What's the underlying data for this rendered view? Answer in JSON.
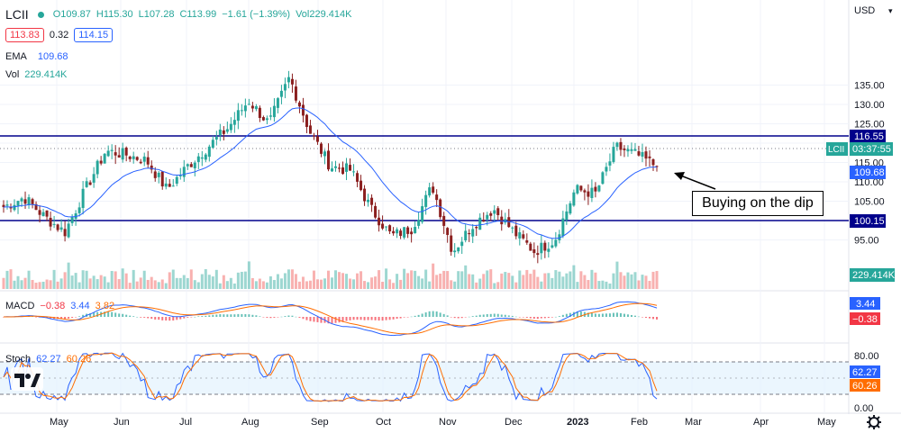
{
  "header": {
    "symbol": "LCII",
    "open": "O109.87",
    "high": "H115.30",
    "low": "L107.28",
    "close": "C113.99",
    "change": "−1.61 (−1.39%)",
    "volume": "Vol229.414K",
    "bid": "113.83",
    "spread": "0.32",
    "ask": "114.15"
  },
  "legends": {
    "ema_label": "EMA",
    "ema_value": "109.68",
    "vol_label": "Vol",
    "vol_value": "229.414K",
    "macd_label": "MACD",
    "macd_values": [
      "−0.38",
      "3.44",
      "3.82"
    ],
    "stoch_label": "Stoch",
    "stoch_values": [
      "62.27",
      "60.26"
    ]
  },
  "price_axis": {
    "currency": "USD",
    "ticks": [
      "135.00",
      "130.00",
      "125.00",
      "120.00",
      "115.00",
      "110.00",
      "105.00",
      "100.00",
      "95.00"
    ],
    "tags": {
      "upper_line": "116.55",
      "lower_line": "100.15",
      "current_label": "LCII",
      "countdown": "03:37:55",
      "last_price": "113.99",
      "ema": "109.68",
      "volume": "229.414K",
      "macd_a": "3.44",
      "macd_b": "−0.38",
      "stoch_k": "62.27",
      "stoch_d": "60.26"
    },
    "stoch_ticks": [
      "80.00",
      "0.00"
    ]
  },
  "time_axis": [
    "May",
    "Jun",
    "Jul",
    "Aug",
    "Sep",
    "Oct",
    "Nov",
    "Dec",
    "2023",
    "Feb",
    "Mar",
    "Apr",
    "May"
  ],
  "annotation": "Buying on the dip",
  "colors": {
    "up": "#26a69a",
    "down": "#8b1f1f",
    "ema": "#2962ff",
    "signal": "#ff6d00",
    "level": "#00008b",
    "stoch_band": "#e3f2fd"
  },
  "chart_data": {
    "type": "candlestick",
    "title": "LCII",
    "y_axis": "USD",
    "ylim": [
      88,
      140
    ],
    "horizontal_levels": [
      116.55,
      100.15
    ],
    "x_labels": [
      "May",
      "Jun",
      "Jul",
      "Aug",
      "Sep",
      "Oct",
      "Nov",
      "Dec",
      "2023",
      "Feb",
      "Mar",
      "Apr",
      "May"
    ],
    "close_path_approx": [
      {
        "x": "Apr",
        "y": 103.5
      },
      {
        "x": "Apr",
        "y": 106
      },
      {
        "x": "Apr",
        "y": 101
      },
      {
        "x": "May",
        "y": 97
      },
      {
        "x": "May",
        "y": 108
      },
      {
        "x": "May",
        "y": 118
      },
      {
        "x": "Jun",
        "y": 117
      },
      {
        "x": "Jun",
        "y": 115.5
      },
      {
        "x": "Jun",
        "y": 108
      },
      {
        "x": "Jul",
        "y": 114
      },
      {
        "x": "Jul",
        "y": 119
      },
      {
        "x": "Jul",
        "y": 124
      },
      {
        "x": "Aug",
        "y": 131
      },
      {
        "x": "Aug",
        "y": 125
      },
      {
        "x": "Aug",
        "y": 137
      },
      {
        "x": "Sep",
        "y": 123
      },
      {
        "x": "Sep",
        "y": 114
      },
      {
        "x": "Sep",
        "y": 113
      },
      {
        "x": "Oct",
        "y": 103
      },
      {
        "x": "Oct",
        "y": 96
      },
      {
        "x": "Oct",
        "y": 98
      },
      {
        "x": "Nov",
        "y": 109
      },
      {
        "x": "Nov",
        "y": 92
      },
      {
        "x": "Nov",
        "y": 99
      },
      {
        "x": "Dec",
        "y": 103
      },
      {
        "x": "Dec",
        "y": 97
      },
      {
        "x": "Dec",
        "y": 92
      },
      {
        "x": "2023",
        "y": 95
      },
      {
        "x": "2023",
        "y": 108
      },
      {
        "x": "2023",
        "y": 107
      },
      {
        "x": "Feb",
        "y": 119
      },
      {
        "x": "Feb",
        "y": 117
      },
      {
        "x": "Feb",
        "y": 113.99
      }
    ],
    "series": [
      {
        "name": "EMA",
        "last": 109.68
      }
    ],
    "macd": {
      "values": [
        -0.38,
        3.44,
        3.82
      ]
    },
    "stoch": {
      "k": 62.27,
      "d": 60.26,
      "bands": [
        80,
        20
      ]
    },
    "last_volume": "229.414K"
  }
}
